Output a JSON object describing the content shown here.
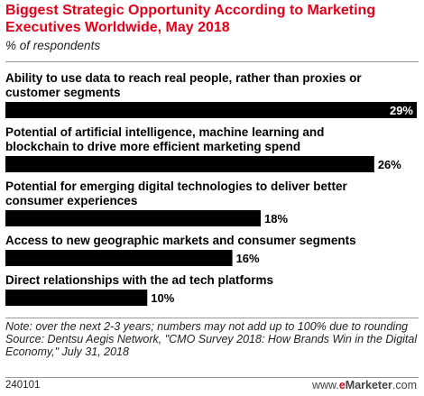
{
  "chart_data": {
    "type": "bar",
    "orientation": "horizontal",
    "title": "Biggest Strategic Opportunity According to Marketing Executives Worldwide, May 2018",
    "subtitle": "% of respondents",
    "categories": [
      [
        "Ability to use data to reach real people, rather than proxies or",
        "customer segments"
      ],
      [
        "Potential of artificial intelligence, machine learning and",
        "blockchain to drive more efficient marketing spend"
      ],
      [
        "Potential for emerging digital technologies to deliver better",
        "consumer experiences"
      ],
      [
        "Access to new geographic markets and consumer segments"
      ],
      [
        "Direct relationships with the ad tech platforms"
      ]
    ],
    "values": [
      29,
      26,
      18,
      16,
      10
    ],
    "value_labels": [
      "29%",
      "26%",
      "18%",
      "16%",
      "10%"
    ],
    "bar_color": "#000000",
    "value_label_color_inside": "#ffffff",
    "value_label_color_outside": "#000000"
  },
  "note": "Note: over the next 2-3 years; numbers may not add up to 100% due to rounding",
  "source": "Source: Dentsu Aegis Network, \"CMO Survey 2018: How Brands Win in the Digital Economy,\" July 31, 2018",
  "footer": {
    "chart_id": "240101",
    "brand_prefix": "www.",
    "brand_e": "e",
    "brand_name": "Marketer",
    "brand_suffix": ".com"
  }
}
